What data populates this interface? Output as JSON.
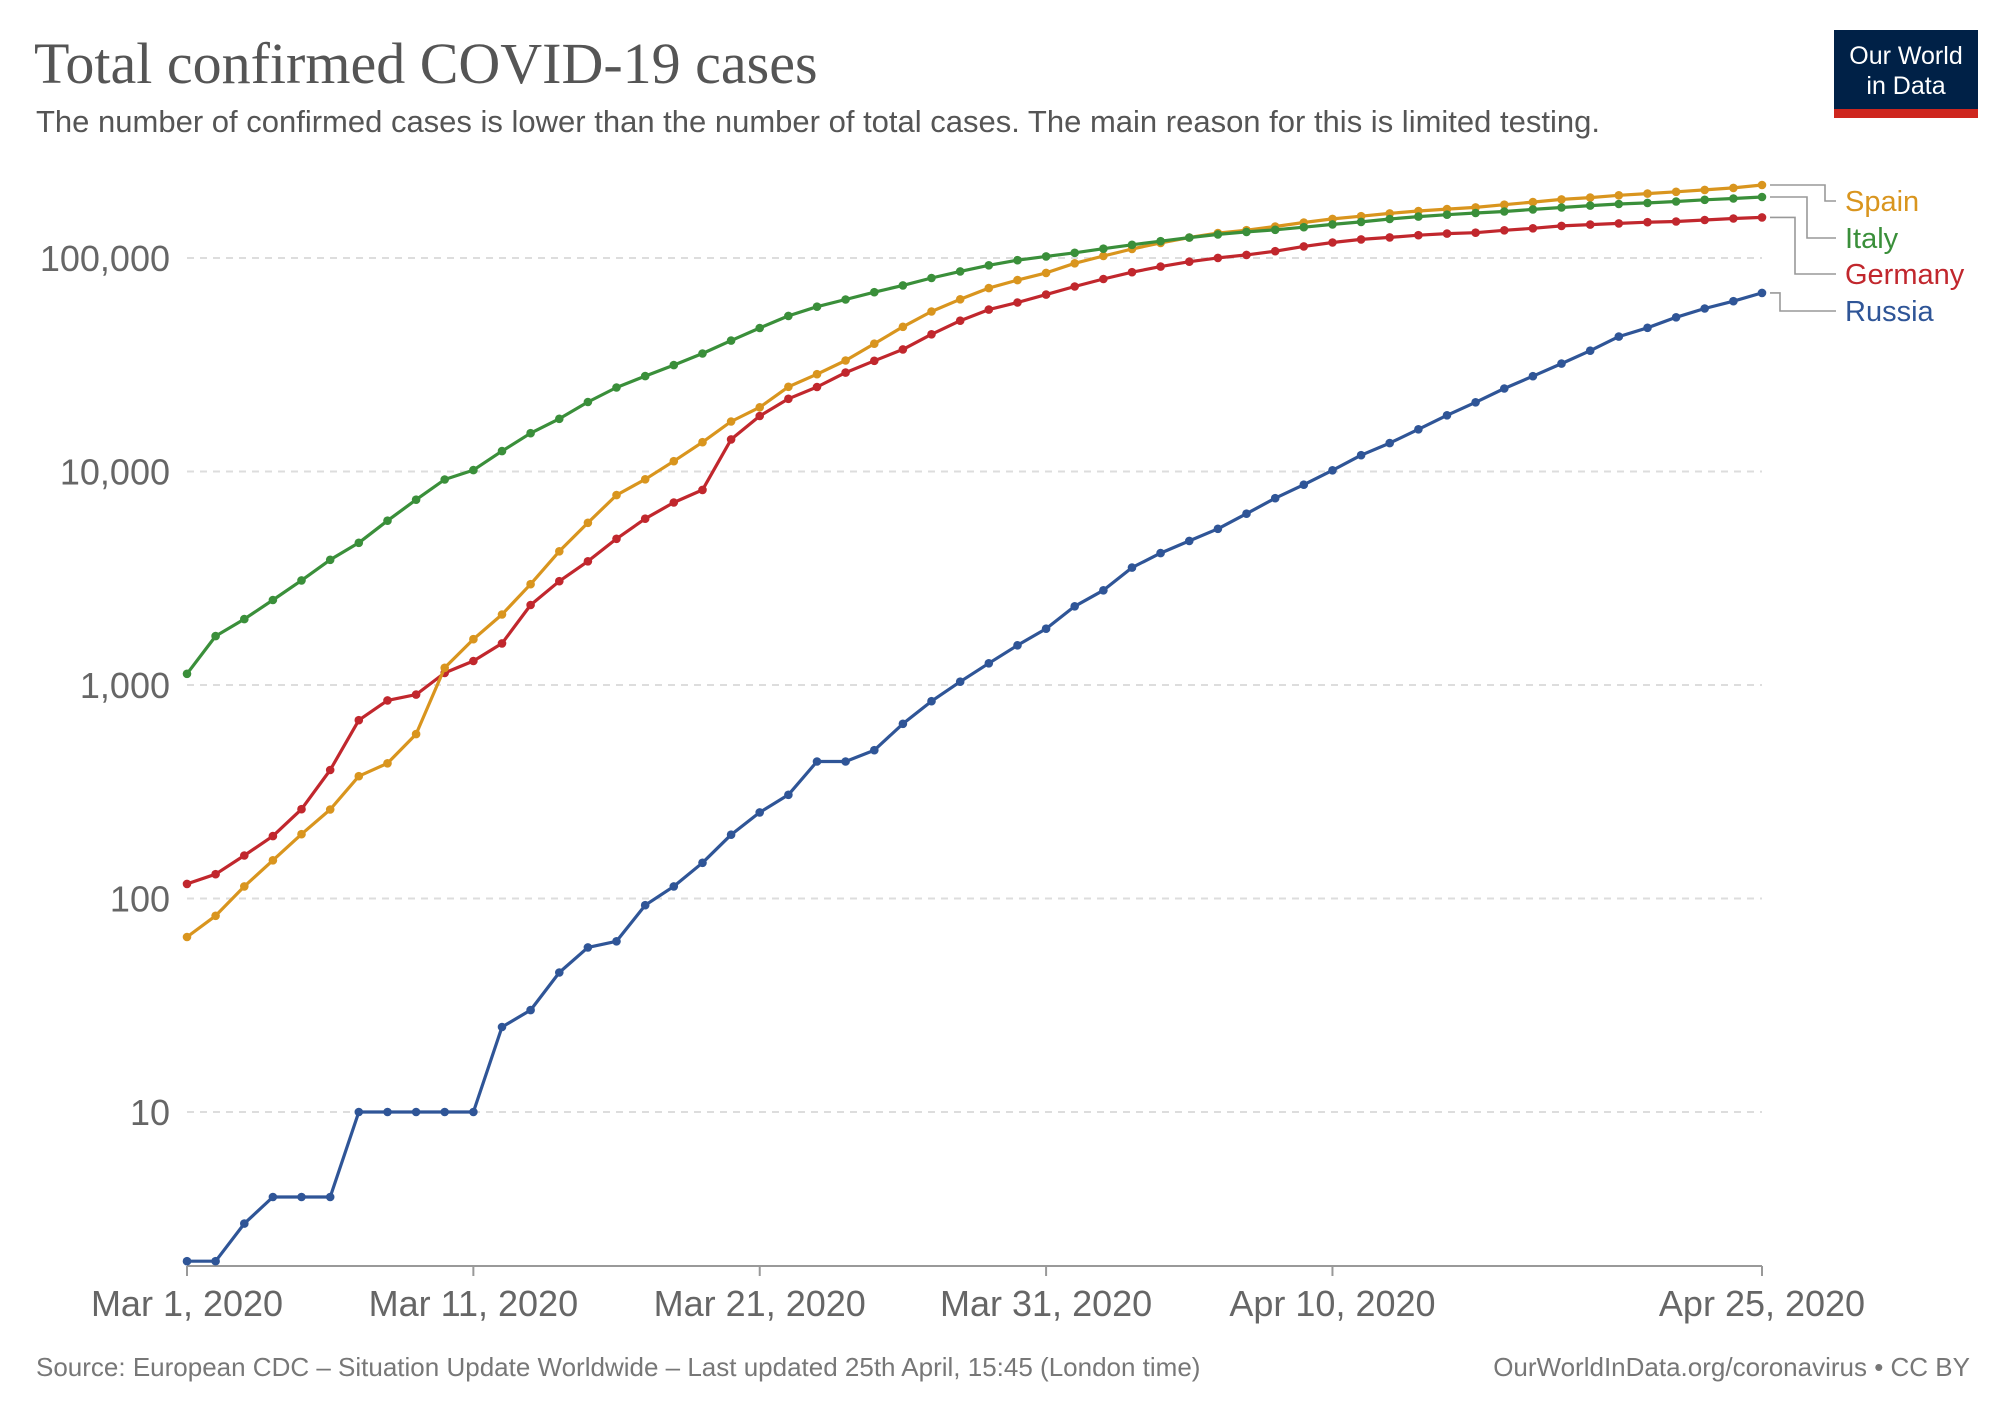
{
  "header": {
    "title": "Total confirmed COVID-19 cases",
    "subtitle": "The number of confirmed cases is lower than the number of total cases. The main reason for this is limited testing."
  },
  "logo": {
    "line1": "Our World",
    "line2": "in Data"
  },
  "footer": {
    "source": "Source: European CDC – Situation Update Worldwide – Last updated 25th April, 15:45 (London time)",
    "credit": "OurWorldInData.org/coronavirus • CC BY"
  },
  "colors": {
    "Spain": "#d9951e",
    "Italy": "#3a8f3a",
    "Germany": "#c1272d",
    "Russia": "#2f5597",
    "grid": "#dddddd",
    "axis": "#666666",
    "logo_bg": "#002147",
    "logo_bar": "#ce261e"
  },
  "chart_data": {
    "type": "line",
    "title": "Total confirmed COVID-19 cases",
    "subtitle": "The number of confirmed cases is lower than the number of total cases. The main reason for this is limited testing.",
    "y_scale": "log",
    "ylim": [
      1.9,
      200000
    ],
    "y_ticks": [
      10,
      100,
      1000,
      10000,
      100000
    ],
    "y_tick_labels": [
      "10",
      "100",
      "1,000",
      "10,000",
      "100,000"
    ],
    "x_start": "2020-03-01",
    "x_end": "2020-04-25",
    "x_ticks": [
      "2020-03-01",
      "2020-03-11",
      "2020-03-21",
      "2020-03-31",
      "2020-04-10",
      "2020-04-25"
    ],
    "x_tick_labels": [
      "Mar 1, 2020",
      "Mar 11, 2020",
      "Mar 21, 2020",
      "Mar 31, 2020",
      "Apr 10, 2020",
      "Apr 25, 2020"
    ],
    "grid": true,
    "legend_position": "right",
    "series": [
      {
        "name": "Spain",
        "values": [
          66,
          83,
          114,
          151,
          200,
          261,
          374,
          430,
          589,
          1204,
          1639,
          2140,
          2965,
          4231,
          5753,
          7753,
          9191,
          11178,
          13716,
          17147,
          19980,
          24926,
          28572,
          33089,
          39673,
          47610,
          56188,
          64059,
          72248,
          78797,
          85195,
          94417,
          102136,
          110238,
          117710,
          124736,
          130759,
          135032,
          140510,
          146690,
          152446,
          157022,
          161852,
          166019,
          169496,
          172541,
          177644,
          182816,
          188068,
          191726,
          196664,
          200210,
          204178,
          208389,
          213024,
          219764
        ]
      },
      {
        "name": "Italy",
        "values": [
          1128,
          1694,
          2036,
          2502,
          3089,
          3858,
          4636,
          5883,
          7375,
          9172,
          10149,
          12462,
          15113,
          17660,
          21157,
          24747,
          27980,
          31506,
          35713,
          41035,
          47021,
          53578,
          59138,
          63927,
          69176,
          74386,
          80589,
          86498,
          92472,
          97689,
          101739,
          105792,
          110574,
          115242,
          119827,
          124632,
          128948,
          132547,
          135586,
          139422,
          143626,
          147577,
          152271,
          156363,
          159516,
          162488,
          165155,
          168941,
          172434,
          175925,
          178972,
          181228,
          183957,
          187327,
          189973,
          192994
        ]
      },
      {
        "name": "Germany",
        "values": [
          117,
          130,
          159,
          196,
          262,
          400,
          684,
          847,
          902,
          1139,
          1296,
          1567,
          2369,
          3062,
          3795,
          4838,
          6012,
          7156,
          8198,
          14138,
          18187,
          21903,
          24873,
          29056,
          32986,
          37323,
          43938,
          50871,
          57298,
          61913,
          67366,
          73522,
          79696,
          85778,
          91159,
          96092,
          100123,
          103374,
          107663,
          113296,
          118181,
          122171,
          124908,
          127854,
          130072,
          131359,
          134753,
          137698,
          141397,
          143342,
          145184,
          147065,
          148291,
          150648,
          153129,
          154999
        ]
      },
      {
        "name": "Russia",
        "values": [
          2,
          2,
          3,
          4,
          4,
          4,
          10,
          10,
          10,
          10,
          10,
          25,
          30,
          45,
          59,
          63,
          93,
          114,
          147,
          199,
          253,
          306,
          438,
          438,
          495,
          658,
          840,
          1036,
          1264,
          1534,
          1836,
          2337,
          2777,
          3548,
          4149,
          4731,
          5389,
          6343,
          7497,
          8672,
          10131,
          11917,
          13584,
          15770,
          18328,
          21102,
          24490,
          27938,
          32008,
          36793,
          42853,
          47121,
          52763,
          57999,
          62773,
          68622
        ]
      }
    ]
  }
}
